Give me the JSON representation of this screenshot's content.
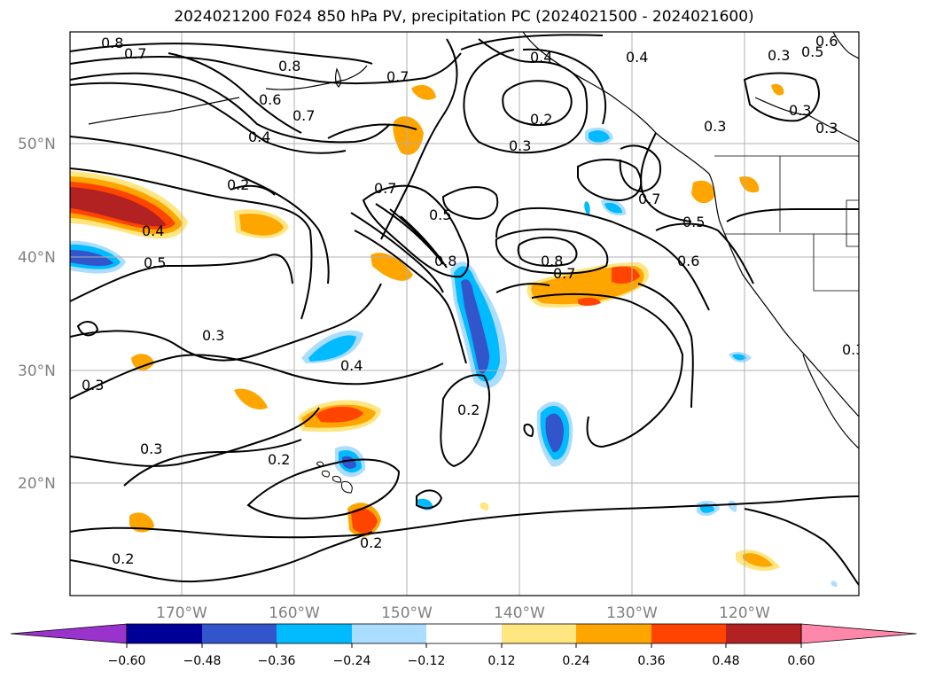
{
  "title": "2024021200 F024 850 hPa PV, precipitation PC (2024021500 - 2024021600)",
  "lat_labels": [
    "50°N",
    "40°N",
    "30°N",
    "20°N"
  ],
  "lon_labels": [
    "170°W",
    "160°W",
    "150°W",
    "140°W",
    "130°W",
    "120°W"
  ],
  "contour_labels": [
    "0.8",
    "0.7",
    "0.8",
    "0.6",
    "0.7",
    "0.4",
    "0.2",
    "0.7",
    "0.4",
    "0.2",
    "0.3",
    "0.4",
    "0.3",
    "0.5",
    "0.7",
    "0.5",
    "0.8",
    "0.4",
    "0.5",
    "0.8",
    "0.7",
    "0.6",
    "0.3",
    "0.4",
    "0.3",
    "0.2",
    "0.3",
    "0.2",
    "0.2",
    "0.3",
    "0.3",
    "0.2",
    "0.3",
    "0.6",
    "0.7",
    "0.5",
    "0.3",
    "0.2",
    "0.3",
    "0.4",
    "0.3"
  ],
  "colorbar": {
    "ticks": [
      "−0.60",
      "−0.48",
      "−0.36",
      "−0.24",
      "−0.12",
      "0.12",
      "0.24",
      "0.36",
      "0.48",
      "0.60"
    ],
    "colors": [
      "#9933cc",
      "#000099",
      "#3355cc",
      "#00bbff",
      "#aaddff",
      "#ffffff",
      "#ffe680",
      "#ffa500",
      "#ff4400",
      "#b22222",
      "#ff88aa"
    ]
  },
  "colors": {
    "neg_strong": "#3355cc",
    "neg_mid": "#00bbff",
    "neg_weak": "#aaddff",
    "pos_weak": "#ffe680",
    "pos_mid": "#ffa500",
    "pos_strong": "#ff4400",
    "pos_vstrong": "#b22222"
  }
}
